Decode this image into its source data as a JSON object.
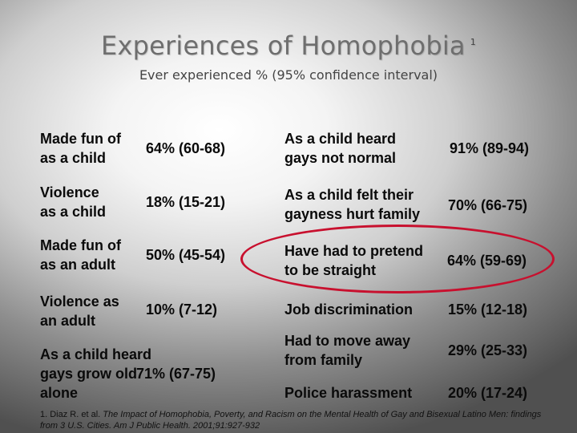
{
  "title": "Experiences of Homophobia",
  "title_ref": "1",
  "subtitle": "Ever experienced % (95% confidence interval)",
  "left_items": [
    {
      "line1": "Made fun of",
      "line2": "as a child",
      "value": "64% (60-68)"
    },
    {
      "line1": "Violence",
      "line2": "as a child",
      "value": "18% (15-21)"
    },
    {
      "line1": "Made fun of",
      "line2": "as an adult",
      "value": "50% (45-54)"
    },
    {
      "line1": "Violence as",
      "line2": "an adult",
      "value": "10% (7-12)"
    },
    {
      "line1": "As a child heard",
      "line2": "gays grow old",
      "line3": "alone",
      "value": "71% (67-75)"
    }
  ],
  "right_items": [
    {
      "line1": "As a child heard",
      "line2": "gays not normal",
      "value": "91% (89-94)"
    },
    {
      "line1": "As a child felt their",
      "line2": "gayness hurt family",
      "value": "70% (66-75)"
    },
    {
      "line1": "Have had to pretend",
      "line2": "to be straight",
      "value": "64% (59-69)"
    },
    {
      "line1": "Job discrimination",
      "value": "15% (12-18)"
    },
    {
      "line1": "Had to move away",
      "line2": "from family",
      "value": "29% (25-33)"
    },
    {
      "line1": "Police harassment",
      "value": "20% (17-24)"
    }
  ],
  "highlight_color": "#c8102e",
  "footnote": {
    "prefix": "1. Diaz R. et al. ",
    "text": "The Impact of Homophobia, Poverty, and Racism on the Mental Health of Gay and Bisexual Latino Men: findings from 3 U.S. Cities. Am J Public Health. 2001;91:927-932"
  }
}
